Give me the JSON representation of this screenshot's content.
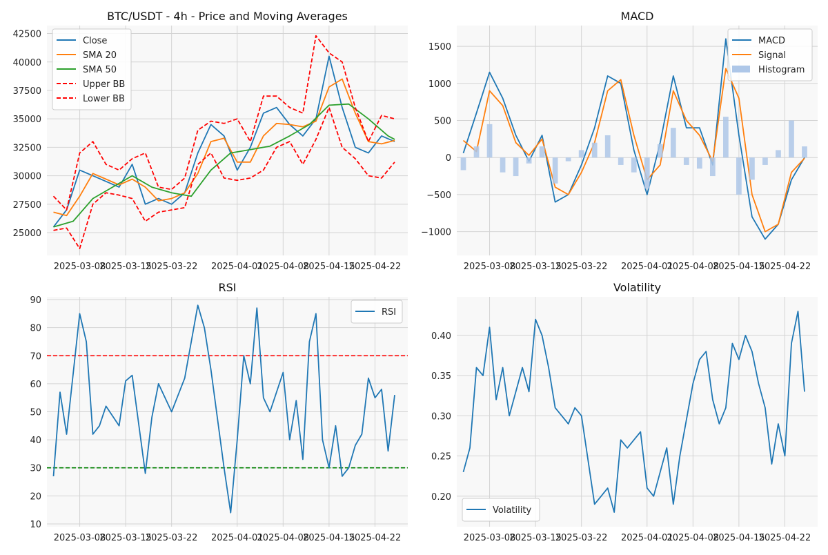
{
  "chart_data": [
    {
      "type": "line",
      "title": "BTC/USDT - 4h - Price and Moving Averages",
      "xlabel": "",
      "ylabel": "",
      "x_ticks": [
        "2025-03-08",
        "2025-03-15",
        "2025-03-22",
        "2025-04-01",
        "2025-04-08",
        "2025-04-15",
        "2025-04-22"
      ],
      "y_ticks": [
        "25000",
        "27500",
        "30000",
        "32500",
        "35000",
        "37500",
        "40000",
        "42500"
      ],
      "ylim": [
        23000,
        43200
      ],
      "grid": true,
      "legend_position": "top-left",
      "series": [
        {
          "name": "Close",
          "color": "#1f77b4",
          "style": "solid",
          "x": [
            "2025-03-04",
            "2025-03-06",
            "2025-03-08",
            "2025-03-10",
            "2025-03-12",
            "2025-03-14",
            "2025-03-16",
            "2025-03-18",
            "2025-03-20",
            "2025-03-22",
            "2025-03-24",
            "2025-03-26",
            "2025-03-28",
            "2025-03-30",
            "2025-04-01",
            "2025-04-03",
            "2025-04-05",
            "2025-04-07",
            "2025-04-09",
            "2025-04-11",
            "2025-04-13",
            "2025-04-15",
            "2025-04-17",
            "2025-04-19",
            "2025-04-21",
            "2025-04-23",
            "2025-04-25"
          ],
          "values": [
            25500,
            27000,
            30500,
            30000,
            29500,
            29000,
            31000,
            27500,
            28000,
            27500,
            28500,
            32000,
            34500,
            33500,
            30500,
            32500,
            35500,
            36000,
            34500,
            33500,
            35000,
            40500,
            36000,
            32500,
            32000,
            33500,
            33000
          ]
        },
        {
          "name": "SMA 20",
          "color": "#ff7f0e",
          "style": "solid",
          "x": [
            "2025-03-04",
            "2025-03-06",
            "2025-03-08",
            "2025-03-10",
            "2025-03-12",
            "2025-03-14",
            "2025-03-16",
            "2025-03-18",
            "2025-03-20",
            "2025-03-22",
            "2025-03-24",
            "2025-03-26",
            "2025-03-28",
            "2025-03-30",
            "2025-04-01",
            "2025-04-03",
            "2025-04-05",
            "2025-04-07",
            "2025-04-09",
            "2025-04-11",
            "2025-04-13",
            "2025-04-15",
            "2025-04-17",
            "2025-04-19",
            "2025-04-21",
            "2025-04-23",
            "2025-04-25"
          ],
          "values": [
            26800,
            26500,
            28200,
            30200,
            29700,
            29200,
            29700,
            29000,
            27800,
            28000,
            28500,
            30200,
            33000,
            33300,
            31200,
            31200,
            33500,
            34600,
            34500,
            34300,
            34800,
            37800,
            38500,
            35500,
            33000,
            32800,
            33100
          ]
        },
        {
          "name": "SMA 50",
          "color": "#2ca02c",
          "style": "solid",
          "x": [
            "2025-03-04",
            "2025-03-07",
            "2025-03-10",
            "2025-03-13",
            "2025-03-16",
            "2025-03-19",
            "2025-03-22",
            "2025-03-25",
            "2025-03-28",
            "2025-03-31",
            "2025-04-03",
            "2025-04-06",
            "2025-04-09",
            "2025-04-12",
            "2025-04-15",
            "2025-04-18",
            "2025-04-21",
            "2025-04-24",
            "2025-04-25"
          ],
          "values": [
            25500,
            26000,
            28000,
            29000,
            30000,
            29000,
            28500,
            28200,
            30500,
            32000,
            32300,
            32600,
            33500,
            34500,
            36200,
            36300,
            35000,
            33500,
            33200
          ]
        },
        {
          "name": "Upper BB",
          "color": "#ff0000",
          "style": "dashed",
          "x": [
            "2025-03-04",
            "2025-03-06",
            "2025-03-08",
            "2025-03-10",
            "2025-03-12",
            "2025-03-14",
            "2025-03-16",
            "2025-03-18",
            "2025-03-20",
            "2025-03-22",
            "2025-03-24",
            "2025-03-26",
            "2025-03-28",
            "2025-03-30",
            "2025-04-01",
            "2025-04-03",
            "2025-04-05",
            "2025-04-07",
            "2025-04-09",
            "2025-04-11",
            "2025-04-13",
            "2025-04-15",
            "2025-04-17",
            "2025-04-19",
            "2025-04-21",
            "2025-04-23",
            "2025-04-25"
          ],
          "values": [
            28200,
            27000,
            32000,
            33000,
            31000,
            30500,
            31500,
            32000,
            29000,
            28800,
            29800,
            34000,
            34800,
            34600,
            35000,
            33000,
            37000,
            37000,
            36000,
            35500,
            42300,
            40800,
            40000,
            36000,
            33000,
            35300,
            35000
          ]
        },
        {
          "name": "Lower BB",
          "color": "#ff0000",
          "style": "dashed",
          "x": [
            "2025-03-04",
            "2025-03-06",
            "2025-03-08",
            "2025-03-10",
            "2025-03-12",
            "2025-03-14",
            "2025-03-16",
            "2025-03-18",
            "2025-03-20",
            "2025-03-22",
            "2025-03-24",
            "2025-03-26",
            "2025-03-28",
            "2025-03-30",
            "2025-04-01",
            "2025-04-03",
            "2025-04-05",
            "2025-04-07",
            "2025-04-09",
            "2025-04-11",
            "2025-04-13",
            "2025-04-15",
            "2025-04-17",
            "2025-04-19",
            "2025-04-21",
            "2025-04-23",
            "2025-04-25"
          ],
          "values": [
            25200,
            25400,
            23600,
            27500,
            28500,
            28300,
            28000,
            26000,
            26800,
            27000,
            27200,
            31000,
            32000,
            29800,
            29600,
            29800,
            30500,
            32500,
            33000,
            31000,
            33200,
            36000,
            32500,
            31500,
            30000,
            29800,
            31200
          ]
        }
      ]
    },
    {
      "type": "line",
      "title": "MACD",
      "xlabel": "",
      "ylabel": "",
      "x_ticks": [
        "2025-03-08",
        "2025-03-15",
        "2025-03-22",
        "2025-04-01",
        "2025-04-08",
        "2025-04-15",
        "2025-04-22"
      ],
      "y_ticks": [
        "−1000",
        "−500",
        "0",
        "500",
        "1000",
        "1500"
      ],
      "ylim": [
        -1320,
        1780
      ],
      "grid": true,
      "legend_position": "top-right",
      "series": [
        {
          "name": "MACD",
          "color": "#1f77b4",
          "style": "solid",
          "x": [
            "2025-03-04",
            "2025-03-06",
            "2025-03-08",
            "2025-03-10",
            "2025-03-12",
            "2025-03-14",
            "2025-03-16",
            "2025-03-18",
            "2025-03-20",
            "2025-03-22",
            "2025-03-24",
            "2025-03-26",
            "2025-03-28",
            "2025-03-30",
            "2025-04-01",
            "2025-04-03",
            "2025-04-05",
            "2025-04-07",
            "2025-04-09",
            "2025-04-11",
            "2025-04-13",
            "2025-04-15",
            "2025-04-17",
            "2025-04-19",
            "2025-04-21",
            "2025-04-23",
            "2025-04-25"
          ],
          "values": [
            60,
            600,
            1150,
            800,
            300,
            -50,
            300,
            -600,
            -500,
            -100,
            400,
            1100,
            1000,
            100,
            -500,
            200,
            1100,
            400,
            400,
            -100,
            1600,
            300,
            -800,
            -1100,
            -900,
            -300,
            0
          ]
        },
        {
          "name": "Signal",
          "color": "#ff7f0e",
          "style": "solid",
          "x": [
            "2025-03-04",
            "2025-03-06",
            "2025-03-08",
            "2025-03-10",
            "2025-03-12",
            "2025-03-14",
            "2025-03-16",
            "2025-03-18",
            "2025-03-20",
            "2025-03-22",
            "2025-03-24",
            "2025-03-26",
            "2025-03-28",
            "2025-03-30",
            "2025-04-01",
            "2025-04-03",
            "2025-04-05",
            "2025-04-07",
            "2025-04-09",
            "2025-04-11",
            "2025-04-13",
            "2025-04-15",
            "2025-04-17",
            "2025-04-19",
            "2025-04-21",
            "2025-04-23",
            "2025-04-25"
          ],
          "values": [
            230,
            80,
            900,
            700,
            200,
            30,
            250,
            -400,
            -500,
            -200,
            200,
            900,
            1050,
            300,
            -300,
            -100,
            900,
            500,
            300,
            -50,
            1200,
            800,
            -500,
            -1000,
            -900,
            -200,
            -10
          ]
        },
        {
          "name": "Histogram",
          "color": "#aec7e8",
          "style": "bar",
          "x": [
            "2025-03-04",
            "2025-03-06",
            "2025-03-08",
            "2025-03-10",
            "2025-03-12",
            "2025-03-14",
            "2025-03-16",
            "2025-03-18",
            "2025-03-20",
            "2025-03-22",
            "2025-03-24",
            "2025-03-26",
            "2025-03-28",
            "2025-03-30",
            "2025-04-01",
            "2025-04-03",
            "2025-04-05",
            "2025-04-07",
            "2025-04-09",
            "2025-04-11",
            "2025-04-13",
            "2025-04-15",
            "2025-04-17",
            "2025-04-19",
            "2025-04-21",
            "2025-04-23",
            "2025-04-25"
          ],
          "values": [
            -170,
            150,
            450,
            -200,
            -250,
            -80,
            150,
            -350,
            -50,
            100,
            200,
            300,
            -100,
            -200,
            -420,
            180,
            400,
            -100,
            -150,
            -250,
            550,
            -500,
            -300,
            -100,
            100,
            500,
            150
          ]
        }
      ]
    },
    {
      "type": "line",
      "title": "RSI",
      "xlabel": "",
      "ylabel": "",
      "x_ticks": [
        "2025-03-08",
        "2025-03-15",
        "2025-03-22",
        "2025-04-01",
        "2025-04-08",
        "2025-04-15",
        "2025-04-22"
      ],
      "y_ticks": [
        "10",
        "20",
        "30",
        "40",
        "50",
        "60",
        "70",
        "80",
        "90"
      ],
      "ylim": [
        9,
        91
      ],
      "grid": true,
      "legend_position": "top-right",
      "reference_lines": [
        {
          "y": 70,
          "color": "#ff0000",
          "style": "dashed"
        },
        {
          "y": 30,
          "color": "#008000",
          "style": "dashed"
        }
      ],
      "series": [
        {
          "name": "RSI",
          "color": "#1f77b4",
          "style": "solid",
          "x": [
            "2025-03-04",
            "2025-03-05",
            "2025-03-06",
            "2025-03-08",
            "2025-03-09",
            "2025-03-10",
            "2025-03-11",
            "2025-03-12",
            "2025-03-14",
            "2025-03-15",
            "2025-03-16",
            "2025-03-18",
            "2025-03-19",
            "2025-03-20",
            "2025-03-22",
            "2025-03-24",
            "2025-03-26",
            "2025-03-27",
            "2025-03-28",
            "2025-03-30",
            "2025-03-31",
            "2025-04-01",
            "2025-04-02",
            "2025-04-03",
            "2025-04-04",
            "2025-04-05",
            "2025-04-06",
            "2025-04-08",
            "2025-04-09",
            "2025-04-10",
            "2025-04-11",
            "2025-04-12",
            "2025-04-13",
            "2025-04-14",
            "2025-04-15",
            "2025-04-16",
            "2025-04-17",
            "2025-04-18",
            "2025-04-19",
            "2025-04-20",
            "2025-04-21",
            "2025-04-22",
            "2025-04-23",
            "2025-04-24",
            "2025-04-25"
          ],
          "values": [
            27,
            57,
            42,
            85,
            75,
            42,
            45,
            52,
            45,
            61,
            63,
            28,
            48,
            60,
            50,
            62,
            88,
            80,
            65,
            30,
            14,
            40,
            70,
            60,
            87,
            55,
            50,
            64,
            40,
            54,
            33,
            75,
            85,
            40,
            30,
            45,
            27,
            30,
            38,
            42,
            62,
            55,
            58,
            36,
            56
          ]
        }
      ]
    },
    {
      "type": "line",
      "title": "Volatility",
      "xlabel": "",
      "ylabel": "",
      "x_ticks": [
        "2025-03-08",
        "2025-03-15",
        "2025-03-22",
        "2025-04-01",
        "2025-04-08",
        "2025-04-15",
        "2025-04-22"
      ],
      "y_ticks": [
        "0.20",
        "0.25",
        "0.30",
        "0.35",
        "0.40"
      ],
      "ylim": [
        0.162,
        0.448
      ],
      "grid": true,
      "legend_position": "bottom-left",
      "series": [
        {
          "name": "Volatility",
          "color": "#1f77b4",
          "style": "solid",
          "x": [
            "2025-03-04",
            "2025-03-05",
            "2025-03-06",
            "2025-03-07",
            "2025-03-08",
            "2025-03-09",
            "2025-03-10",
            "2025-03-11",
            "2025-03-12",
            "2025-03-13",
            "2025-03-14",
            "2025-03-15",
            "2025-03-16",
            "2025-03-17",
            "2025-03-18",
            "2025-03-19",
            "2025-03-20",
            "2025-03-21",
            "2025-03-22",
            "2025-03-24",
            "2025-03-25",
            "2025-03-26",
            "2025-03-27",
            "2025-03-28",
            "2025-03-29",
            "2025-03-30",
            "2025-03-31",
            "2025-04-01",
            "2025-04-02",
            "2025-04-03",
            "2025-04-04",
            "2025-04-05",
            "2025-04-06",
            "2025-04-08",
            "2025-04-09",
            "2025-04-10",
            "2025-04-11",
            "2025-04-12",
            "2025-04-13",
            "2025-04-14",
            "2025-04-15",
            "2025-04-16",
            "2025-04-17",
            "2025-04-18",
            "2025-04-19",
            "2025-04-20",
            "2025-04-21",
            "2025-04-22",
            "2025-04-23",
            "2025-04-24",
            "2025-04-25"
          ],
          "values": [
            0.23,
            0.26,
            0.36,
            0.35,
            0.41,
            0.32,
            0.36,
            0.3,
            0.33,
            0.36,
            0.33,
            0.42,
            0.4,
            0.36,
            0.31,
            0.3,
            0.29,
            0.31,
            0.3,
            0.19,
            0.2,
            0.21,
            0.18,
            0.27,
            0.26,
            0.27,
            0.28,
            0.21,
            0.2,
            0.23,
            0.26,
            0.19,
            0.25,
            0.34,
            0.37,
            0.38,
            0.32,
            0.29,
            0.31,
            0.39,
            0.37,
            0.4,
            0.38,
            0.34,
            0.31,
            0.24,
            0.29,
            0.25,
            0.39,
            0.43,
            0.33
          ]
        }
      ]
    }
  ]
}
